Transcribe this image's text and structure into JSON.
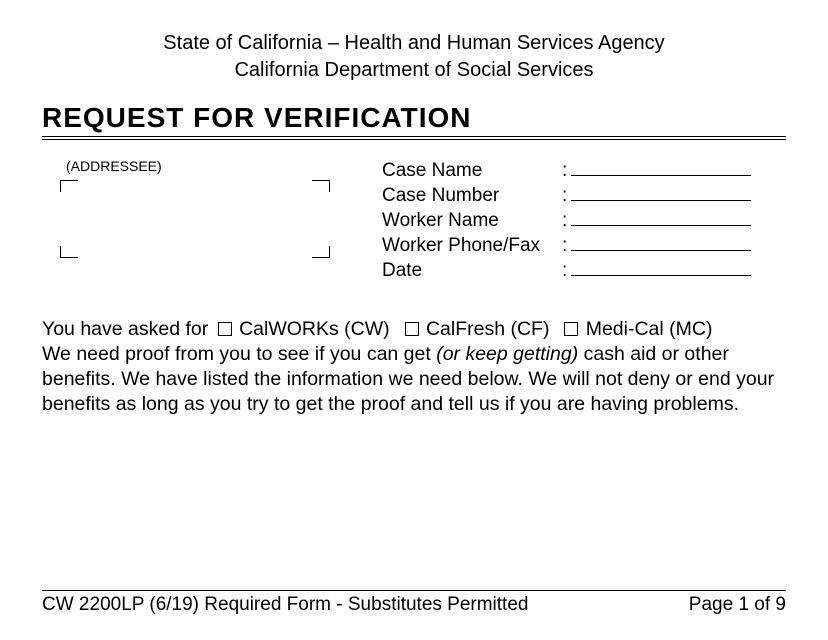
{
  "header": {
    "line1": "State of California – Health and Human Services Agency",
    "line2": "California Department of Social Services"
  },
  "title": "REQUEST FOR VERIFICATION",
  "addressee_label": "(ADDRESSEE)",
  "fields": [
    {
      "label": "Case Name",
      "value": ""
    },
    {
      "label": "Case Number",
      "value": ""
    },
    {
      "label": "Worker Name",
      "value": ""
    },
    {
      "label": "Worker Phone/Fax",
      "value": ""
    },
    {
      "label": "Date",
      "value": ""
    }
  ],
  "body": {
    "lead": "You have asked for",
    "programs": [
      {
        "label": "CalWORKs (CW)"
      },
      {
        "label": "CalFresh (CF)"
      },
      {
        "label": "Medi-Cal (MC)"
      }
    ],
    "para_pre": "We need proof from you to see if you can get ",
    "para_italic": "(or keep getting)",
    "para_post": " cash aid or other benefits.  We have listed the information we need below.  We will not deny or end your benefits as long as you try to get the proof and tell us if you are having problems."
  },
  "footer": {
    "left": "CW 2200LP (6/19) Required Form - Substitutes Permitted",
    "right": "Page 1 of 9"
  },
  "colors": {
    "text": "#000000",
    "background": "#ffffff"
  },
  "typography": {
    "body_fontsize_pt": 15,
    "title_fontsize_pt": 21,
    "title_weight": "bold",
    "font_family": "Arial"
  }
}
